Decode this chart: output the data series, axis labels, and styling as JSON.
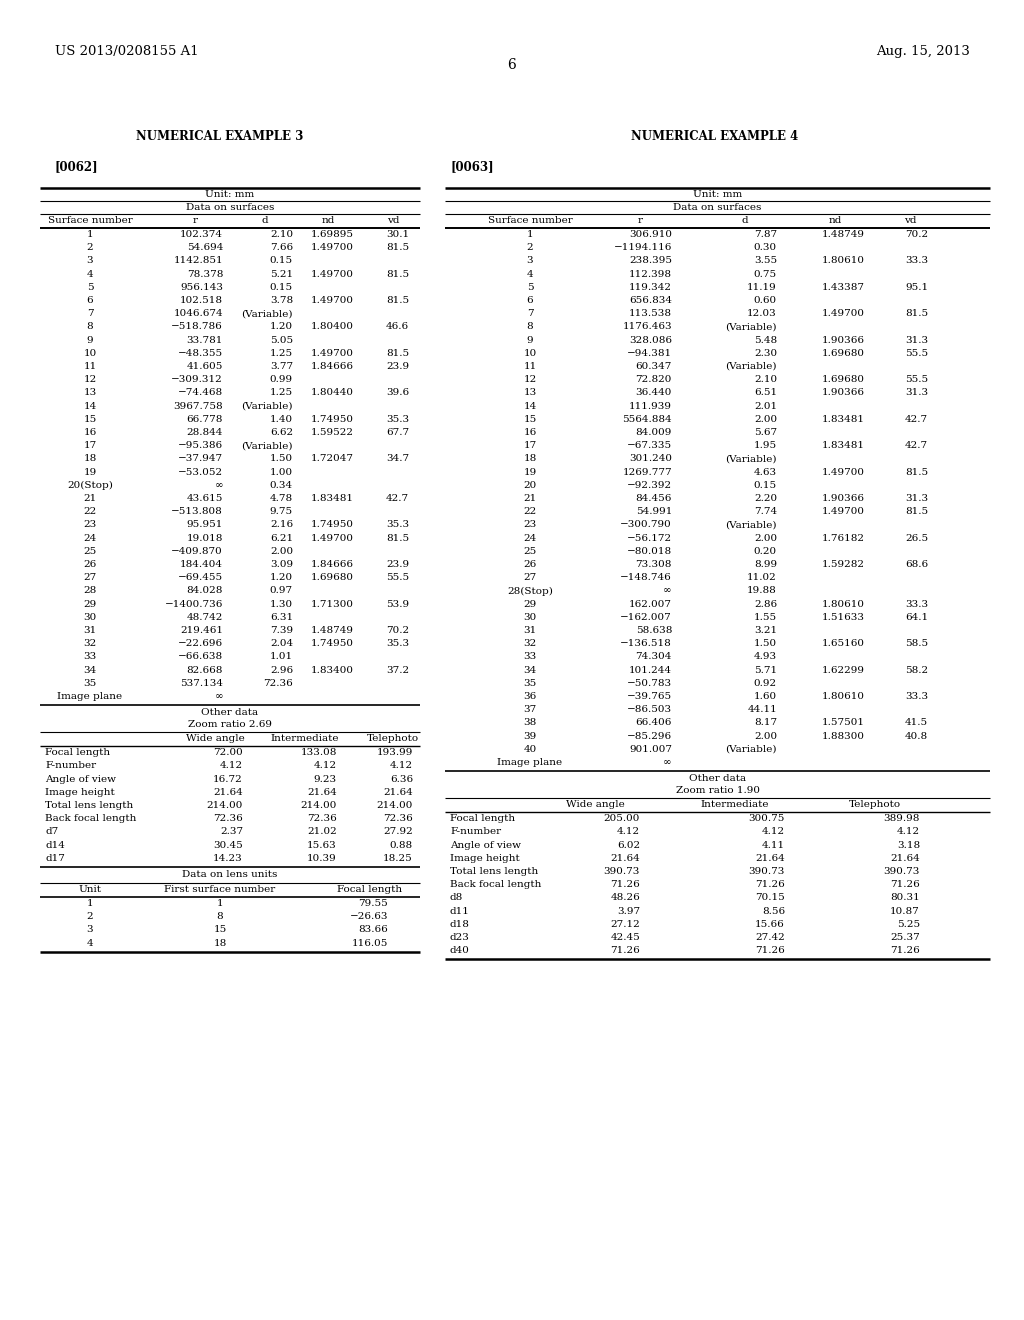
{
  "header_left": "US 2013/0208155 A1",
  "header_right": "Aug. 15, 2013",
  "page_number": "6",
  "ex3_title": "NUMERICAL EXAMPLE 3",
  "ex3_ref": "[0062]",
  "ex3_unit": "Unit: mm",
  "ex3_section": "Data on surfaces",
  "ex3_surfaces": [
    [
      "1",
      "102.374",
      "2.10",
      "1.69895",
      "30.1"
    ],
    [
      "2",
      "54.694",
      "7.66",
      "1.49700",
      "81.5"
    ],
    [
      "3",
      "1142.851",
      "0.15",
      "",
      ""
    ],
    [
      "4",
      "78.378",
      "5.21",
      "1.49700",
      "81.5"
    ],
    [
      "5",
      "956.143",
      "0.15",
      "",
      ""
    ],
    [
      "6",
      "102.518",
      "3.78",
      "1.49700",
      "81.5"
    ],
    [
      "7",
      "1046.674",
      "(Variable)",
      "",
      ""
    ],
    [
      "8",
      "−518.786",
      "1.20",
      "1.80400",
      "46.6"
    ],
    [
      "9",
      "33.781",
      "5.05",
      "",
      ""
    ],
    [
      "10",
      "−48.355",
      "1.25",
      "1.49700",
      "81.5"
    ],
    [
      "11",
      "41.605",
      "3.77",
      "1.84666",
      "23.9"
    ],
    [
      "12",
      "−309.312",
      "0.99",
      "",
      ""
    ],
    [
      "13",
      "−74.468",
      "1.25",
      "1.80440",
      "39.6"
    ],
    [
      "14",
      "3967.758",
      "(Variable)",
      "",
      ""
    ],
    [
      "15",
      "66.778",
      "1.40",
      "1.74950",
      "35.3"
    ],
    [
      "16",
      "28.844",
      "6.62",
      "1.59522",
      "67.7"
    ],
    [
      "17",
      "−95.386",
      "(Variable)",
      "",
      ""
    ],
    [
      "18",
      "−37.947",
      "1.50",
      "1.72047",
      "34.7"
    ],
    [
      "19",
      "−53.052",
      "1.00",
      "",
      ""
    ],
    [
      "20(Stop)",
      "∞",
      "0.34",
      "",
      ""
    ],
    [
      "21",
      "43.615",
      "4.78",
      "1.83481",
      "42.7"
    ],
    [
      "22",
      "−513.808",
      "9.75",
      "",
      ""
    ],
    [
      "23",
      "95.951",
      "2.16",
      "1.74950",
      "35.3"
    ],
    [
      "24",
      "19.018",
      "6.21",
      "1.49700",
      "81.5"
    ],
    [
      "25",
      "−409.870",
      "2.00",
      "",
      ""
    ],
    [
      "26",
      "184.404",
      "3.09",
      "1.84666",
      "23.9"
    ],
    [
      "27",
      "−69.455",
      "1.20",
      "1.69680",
      "55.5"
    ],
    [
      "28",
      "84.028",
      "0.97",
      "",
      ""
    ],
    [
      "29",
      "−1400.736",
      "1.30",
      "1.71300",
      "53.9"
    ],
    [
      "30",
      "48.742",
      "6.31",
      "",
      ""
    ],
    [
      "31",
      "219.461",
      "7.39",
      "1.48749",
      "70.2"
    ],
    [
      "32",
      "−22.696",
      "2.04",
      "1.74950",
      "35.3"
    ],
    [
      "33",
      "−66.638",
      "1.01",
      "",
      ""
    ],
    [
      "34",
      "82.668",
      "2.96",
      "1.83400",
      "37.2"
    ],
    [
      "35",
      "537.134",
      "72.36",
      "",
      ""
    ],
    [
      "Image plane",
      "∞",
      "",
      "",
      ""
    ]
  ],
  "ex3_other": "Other data",
  "ex3_zoom": "Zoom ratio 2.69",
  "ex3_data2": [
    [
      "Focal length",
      "72.00",
      "133.08",
      "193.99"
    ],
    [
      "F-number",
      "4.12",
      "4.12",
      "4.12"
    ],
    [
      "Angle of view",
      "16.72",
      "9.23",
      "6.36"
    ],
    [
      "Image height",
      "21.64",
      "21.64",
      "21.64"
    ],
    [
      "Total lens length",
      "214.00",
      "214.00",
      "214.00"
    ],
    [
      "Back focal length",
      "72.36",
      "72.36",
      "72.36"
    ],
    [
      "d7",
      "2.37",
      "21.02",
      "27.92"
    ],
    [
      "d14",
      "30.45",
      "15.63",
      "0.88"
    ],
    [
      "d17",
      "14.23",
      "10.39",
      "18.25"
    ]
  ],
  "ex3_lens_title": "Data on lens units",
  "ex3_lens_data": [
    [
      "1",
      "1",
      "79.55"
    ],
    [
      "2",
      "8",
      "−26.63"
    ],
    [
      "3",
      "15",
      "83.66"
    ],
    [
      "4",
      "18",
      "116.05"
    ]
  ],
  "ex4_title": "NUMERICAL EXAMPLE 4",
  "ex4_ref": "[0063]",
  "ex4_unit": "Unit: mm",
  "ex4_section": "Data on surfaces",
  "ex4_surfaces": [
    [
      "1",
      "306.910",
      "7.87",
      "1.48749",
      "70.2"
    ],
    [
      "2",
      "−1194.116",
      "0.30",
      "",
      ""
    ],
    [
      "3",
      "238.395",
      "3.55",
      "1.80610",
      "33.3"
    ],
    [
      "4",
      "112.398",
      "0.75",
      "",
      ""
    ],
    [
      "5",
      "119.342",
      "11.19",
      "1.43387",
      "95.1"
    ],
    [
      "6",
      "656.834",
      "0.60",
      "",
      ""
    ],
    [
      "7",
      "113.538",
      "12.03",
      "1.49700",
      "81.5"
    ],
    [
      "8",
      "1176.463",
      "(Variable)",
      "",
      ""
    ],
    [
      "9",
      "328.086",
      "5.48",
      "1.90366",
      "31.3"
    ],
    [
      "10",
      "−94.381",
      "2.30",
      "1.69680",
      "55.5"
    ],
    [
      "11",
      "60.347",
      "(Variable)",
      "",
      ""
    ],
    [
      "12",
      "72.820",
      "2.10",
      "1.69680",
      "55.5"
    ],
    [
      "13",
      "36.440",
      "6.51",
      "1.90366",
      "31.3"
    ],
    [
      "14",
      "111.939",
      "2.01",
      "",
      ""
    ],
    [
      "15",
      "5564.884",
      "2.00",
      "1.83481",
      "42.7"
    ],
    [
      "16",
      "84.009",
      "5.67",
      "",
      ""
    ],
    [
      "17",
      "−67.335",
      "1.95",
      "1.83481",
      "42.7"
    ],
    [
      "18",
      "301.240",
      "(Variable)",
      "",
      ""
    ],
    [
      "19",
      "1269.777",
      "4.63",
      "1.49700",
      "81.5"
    ],
    [
      "20",
      "−92.392",
      "0.15",
      "",
      ""
    ],
    [
      "21",
      "84.456",
      "2.20",
      "1.90366",
      "31.3"
    ],
    [
      "22",
      "54.991",
      "7.74",
      "1.49700",
      "81.5"
    ],
    [
      "23",
      "−300.790",
      "(Variable)",
      "",
      ""
    ],
    [
      "24",
      "−56.172",
      "2.00",
      "1.76182",
      "26.5"
    ],
    [
      "25",
      "−80.018",
      "0.20",
      "",
      ""
    ],
    [
      "26",
      "73.308",
      "8.99",
      "1.59282",
      "68.6"
    ],
    [
      "27",
      "−148.746",
      "11.02",
      "",
      ""
    ],
    [
      "28(Stop)",
      "∞",
      "19.88",
      "",
      ""
    ],
    [
      "29",
      "162.007",
      "2.86",
      "1.80610",
      "33.3"
    ],
    [
      "30",
      "−162.007",
      "1.55",
      "1.51633",
      "64.1"
    ],
    [
      "31",
      "58.638",
      "3.21",
      "",
      ""
    ],
    [
      "32",
      "−136.518",
      "1.50",
      "1.65160",
      "58.5"
    ],
    [
      "33",
      "74.304",
      "4.93",
      "",
      ""
    ],
    [
      "34",
      "101.244",
      "5.71",
      "1.62299",
      "58.2"
    ],
    [
      "35",
      "−50.783",
      "0.92",
      "",
      ""
    ],
    [
      "36",
      "−39.765",
      "1.60",
      "1.80610",
      "33.3"
    ],
    [
      "37",
      "−86.503",
      "44.11",
      "",
      ""
    ],
    [
      "38",
      "66.406",
      "8.17",
      "1.57501",
      "41.5"
    ],
    [
      "39",
      "−85.296",
      "2.00",
      "1.88300",
      "40.8"
    ],
    [
      "40",
      "901.007",
      "(Variable)",
      "",
      ""
    ],
    [
      "Image plane",
      "∞",
      "",
      "",
      ""
    ]
  ],
  "ex4_other": "Other data",
  "ex4_zoom": "Zoom ratio 1.90",
  "ex4_data2": [
    [
      "Focal length",
      "205.00",
      "300.75",
      "389.98"
    ],
    [
      "F-number",
      "4.12",
      "4.12",
      "4.12"
    ],
    [
      "Angle of view",
      "6.02",
      "4.11",
      "3.18"
    ],
    [
      "Image height",
      "21.64",
      "21.64",
      "21.64"
    ],
    [
      "Total lens length",
      "390.73",
      "390.73",
      "390.73"
    ],
    [
      "Back focal length",
      "71.26",
      "71.26",
      "71.26"
    ],
    [
      "d8",
      "48.26",
      "70.15",
      "80.31"
    ],
    [
      "d11",
      "3.97",
      "8.56",
      "10.87"
    ],
    [
      "d18",
      "27.12",
      "15.66",
      "5.25"
    ],
    [
      "d23",
      "42.45",
      "27.42",
      "25.37"
    ],
    [
      "d40",
      "71.26",
      "71.26",
      "71.26"
    ]
  ]
}
